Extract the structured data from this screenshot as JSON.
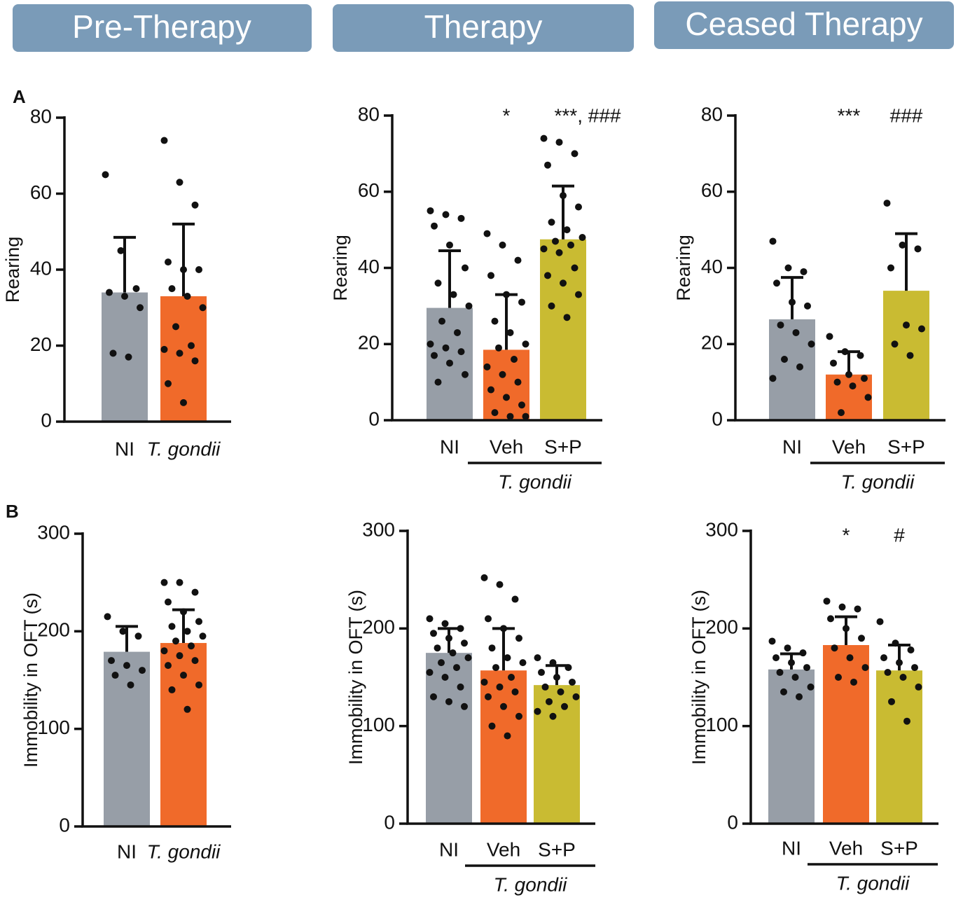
{
  "headers": [
    "Pre-Therapy",
    "Therapy",
    "Ceased Therapy"
  ],
  "panel_labels": [
    "A",
    "B"
  ],
  "chart_data": [
    {
      "type": "bar",
      "ylabel": "Rearing",
      "categories": [
        "NI",
        "T. gondii"
      ],
      "colors": [
        "#979ea7",
        "#f06a2a"
      ],
      "values": [
        34,
        33
      ],
      "errors": [
        14.5,
        19
      ],
      "points": [
        [
          65,
          45,
          35,
          34,
          33,
          30,
          18,
          17
        ],
        [
          74,
          63,
          57,
          42,
          40,
          40,
          35,
          33,
          30,
          25,
          20,
          19,
          18,
          16,
          10,
          5
        ]
      ],
      "ylim": [
        0,
        80
      ],
      "yticks": [
        0,
        20,
        40,
        60,
        80
      ]
    },
    {
      "type": "bar",
      "ylabel": "Rearing",
      "categories": [
        "NI",
        "Veh",
        "S+P"
      ],
      "group_label": "T. gondii",
      "colors": [
        "#979ea7",
        "#f06a2a",
        "#c9bb32"
      ],
      "values": [
        29.5,
        18.5,
        47.5
      ],
      "errors": [
        15,
        14.5,
        14
      ],
      "annotations": [
        null,
        "*",
        "***, ###"
      ],
      "points": [
        [
          55,
          54,
          53,
          51,
          46,
          40,
          36,
          33,
          30,
          26,
          23,
          20,
          19,
          18,
          17,
          15,
          12,
          10
        ],
        [
          49,
          46,
          42,
          38,
          33,
          31,
          26,
          23,
          20,
          19,
          16,
          14,
          12,
          10,
          8,
          6,
          4,
          2,
          1,
          1
        ],
        [
          74,
          73,
          70,
          67,
          59,
          56,
          52,
          50,
          48,
          47,
          46,
          45,
          44,
          40,
          38,
          36,
          33,
          30,
          27
        ]
      ],
      "ylim": [
        0,
        80
      ],
      "yticks": [
        0,
        20,
        40,
        60,
        80
      ]
    },
    {
      "type": "bar",
      "ylabel": "Rearing",
      "categories": [
        "NI",
        "Veh",
        "S+P"
      ],
      "group_label": "T. gondii",
      "colors": [
        "#979ea7",
        "#f06a2a",
        "#c9bb32"
      ],
      "values": [
        26.5,
        12,
        34
      ],
      "errors": [
        11,
        6,
        15
      ],
      "annotations": [
        null,
        "***",
        "###"
      ],
      "points": [
        [
          47,
          40,
          39,
          36,
          31,
          30,
          25,
          23,
          20,
          16,
          14,
          11
        ],
        [
          22,
          18,
          17,
          15,
          12,
          11,
          10,
          9,
          6,
          2
        ],
        [
          57,
          46,
          45,
          40,
          25,
          24,
          20,
          17
        ]
      ],
      "ylim": [
        0,
        80
      ],
      "yticks": [
        0,
        20,
        40,
        60,
        80
      ]
    },
    {
      "type": "bar",
      "ylabel": "Immobility in OFT (s)",
      "categories": [
        "NI",
        "T. gondii"
      ],
      "colors": [
        "#979ea7",
        "#f06a2a"
      ],
      "values": [
        179,
        188
      ],
      "errors": [
        26,
        34
      ],
      "points": [
        [
          215,
          200,
          195,
          170,
          165,
          160,
          155,
          145
        ],
        [
          250,
          250,
          240,
          230,
          220,
          210,
          205,
          200,
          195,
          190,
          185,
          180,
          175,
          170,
          165,
          155,
          145,
          140,
          120
        ]
      ],
      "ylim": [
        0,
        300
      ],
      "yticks": [
        0,
        100,
        200,
        300
      ]
    },
    {
      "type": "bar",
      "ylabel": "Immobility in OFT (s)",
      "categories": [
        "NI",
        "Veh",
        "S+P"
      ],
      "group_label": "T. gondii",
      "colors": [
        "#979ea7",
        "#f06a2a",
        "#c9bb32"
      ],
      "values": [
        175,
        157,
        142
      ],
      "errors": [
        25,
        43,
        20
      ],
      "points": [
        [
          210,
          205,
          200,
          195,
          190,
          185,
          180,
          175,
          170,
          165,
          160,
          155,
          150,
          140,
          130,
          125,
          120
        ],
        [
          252,
          245,
          230,
          210,
          200,
          190,
          180,
          170,
          165,
          160,
          150,
          145,
          140,
          135,
          130,
          120,
          110,
          100,
          90
        ],
        [
          170,
          165,
          160,
          155,
          150,
          145,
          140,
          135,
          130,
          125,
          120,
          115,
          110
        ]
      ],
      "ylim": [
        0,
        300
      ],
      "yticks": [
        0,
        100,
        200,
        300
      ]
    },
    {
      "type": "bar",
      "ylabel": "Immobility in OFT (s)",
      "categories": [
        "NI",
        "Veh",
        "S+P"
      ],
      "group_label": "T. gondii",
      "colors": [
        "#979ea7",
        "#f06a2a",
        "#c9bb32"
      ],
      "values": [
        158,
        183,
        157
      ],
      "errors": [
        16,
        29,
        26
      ],
      "annotations": [
        null,
        "*",
        "#"
      ],
      "points": [
        [
          187,
          180,
          175,
          170,
          165,
          160,
          155,
          150,
          140,
          135,
          130
        ],
        [
          228,
          222,
          220,
          210,
          200,
          190,
          180,
          170,
          160,
          150,
          145
        ],
        [
          207,
          185,
          178,
          170,
          165,
          160,
          155,
          150,
          140,
          125,
          105
        ]
      ],
      "ylim": [
        0,
        300
      ],
      "yticks": [
        0,
        100,
        200,
        300
      ]
    }
  ]
}
